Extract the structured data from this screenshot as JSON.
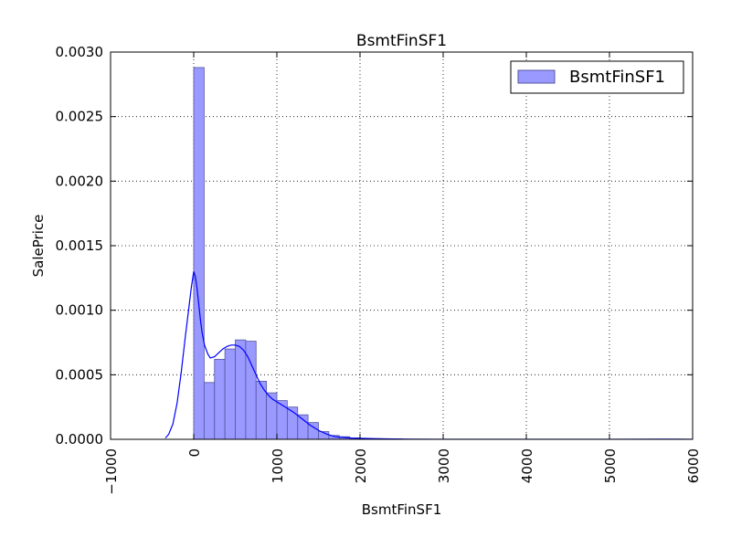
{
  "chart_data": {
    "type": "histogram",
    "title": "BsmtFinSF1",
    "xlabel": "BsmtFinSF1",
    "ylabel": "SalePrice",
    "xlim": [
      -1000,
      6000
    ],
    "ylim": [
      0,
      0.003
    ],
    "x_ticks": [
      -1000,
      0,
      1000,
      2000,
      3000,
      4000,
      5000,
      6000
    ],
    "x_tick_labels": [
      "−1000",
      "0",
      "1000",
      "2000",
      "3000",
      "4000",
      "5000",
      "6000"
    ],
    "y_ticks": [
      0,
      0.0005,
      0.001,
      0.0015,
      0.002,
      0.0025,
      0.003
    ],
    "y_tick_labels": [
      "0.0000",
      "0.0005",
      "0.0010",
      "0.0015",
      "0.0020",
      "0.0025",
      "0.0030"
    ],
    "grid": true,
    "legend": {
      "position": "top-right",
      "entries": [
        "BsmtFinSF1"
      ]
    },
    "colors": {
      "bar_fill": "#9999ff",
      "bar_edge": "#5555a0",
      "kde_line": "#0000ff"
    },
    "bins": [
      {
        "start": 0,
        "end": 125,
        "density": 0.00288
      },
      {
        "start": 125,
        "end": 250,
        "density": 0.00044
      },
      {
        "start": 250,
        "end": 375,
        "density": 0.00062
      },
      {
        "start": 375,
        "end": 500,
        "density": 0.0007
      },
      {
        "start": 500,
        "end": 625,
        "density": 0.00077
      },
      {
        "start": 625,
        "end": 750,
        "density": 0.00076
      },
      {
        "start": 750,
        "end": 875,
        "density": 0.00045
      },
      {
        "start": 875,
        "end": 1000,
        "density": 0.00036
      },
      {
        "start": 1000,
        "end": 1125,
        "density": 0.0003
      },
      {
        "start": 1125,
        "end": 1250,
        "density": 0.00025
      },
      {
        "start": 1250,
        "end": 1375,
        "density": 0.00019
      },
      {
        "start": 1375,
        "end": 1500,
        "density": 0.00013
      },
      {
        "start": 1500,
        "end": 1625,
        "density": 6e-05
      },
      {
        "start": 1625,
        "end": 1750,
        "density": 3e-05
      },
      {
        "start": 1750,
        "end": 1875,
        "density": 2e-05
      },
      {
        "start": 1875,
        "end": 2000,
        "density": 1e-05
      },
      {
        "start": 2000,
        "end": 2125,
        "density": 5e-06
      },
      {
        "start": 2125,
        "end": 2250,
        "density": 5e-06
      },
      {
        "start": 2250,
        "end": 2375,
        "density": 3e-06
      },
      {
        "start": 2375,
        "end": 2500,
        "density": 3e-06
      }
    ],
    "kde": {
      "x": [
        -340,
        -300,
        -250,
        -200,
        -150,
        -100,
        -60,
        -30,
        0,
        20,
        40,
        60,
        80,
        100,
        130,
        170,
        200,
        250,
        300,
        350,
        400,
        450,
        500,
        550,
        600,
        650,
        700,
        750,
        800,
        850,
        900,
        950,
        1000,
        1100,
        1200,
        1300,
        1400,
        1500,
        1600,
        1700,
        1800,
        1900,
        2000,
        2200,
        2400,
        2600,
        3000,
        4000,
        5000,
        5600,
        5800,
        6000
      ],
      "y": [
        1e-05,
        4e-05,
        0.00012,
        0.00028,
        0.00052,
        0.0008,
        0.00101,
        0.00117,
        0.0013,
        0.00126,
        0.00117,
        0.00105,
        0.00093,
        0.00083,
        0.00073,
        0.00066,
        0.00063,
        0.00064,
        0.00067,
        0.0007,
        0.00072,
        0.00073,
        0.00073,
        0.00072,
        0.00069,
        0.00064,
        0.00057,
        0.0005,
        0.00043,
        0.00038,
        0.00034,
        0.00031,
        0.00029,
        0.00025,
        0.00021,
        0.00016,
        0.00011,
        7e-05,
        4e-05,
        2e-05,
        1.5e-05,
        1e-05,
        8e-06,
        5e-06,
        3e-06,
        1e-06,
        5e-07,
        3e-07,
        3e-07,
        1e-06,
        1e-06,
        3e-07
      ]
    }
  }
}
